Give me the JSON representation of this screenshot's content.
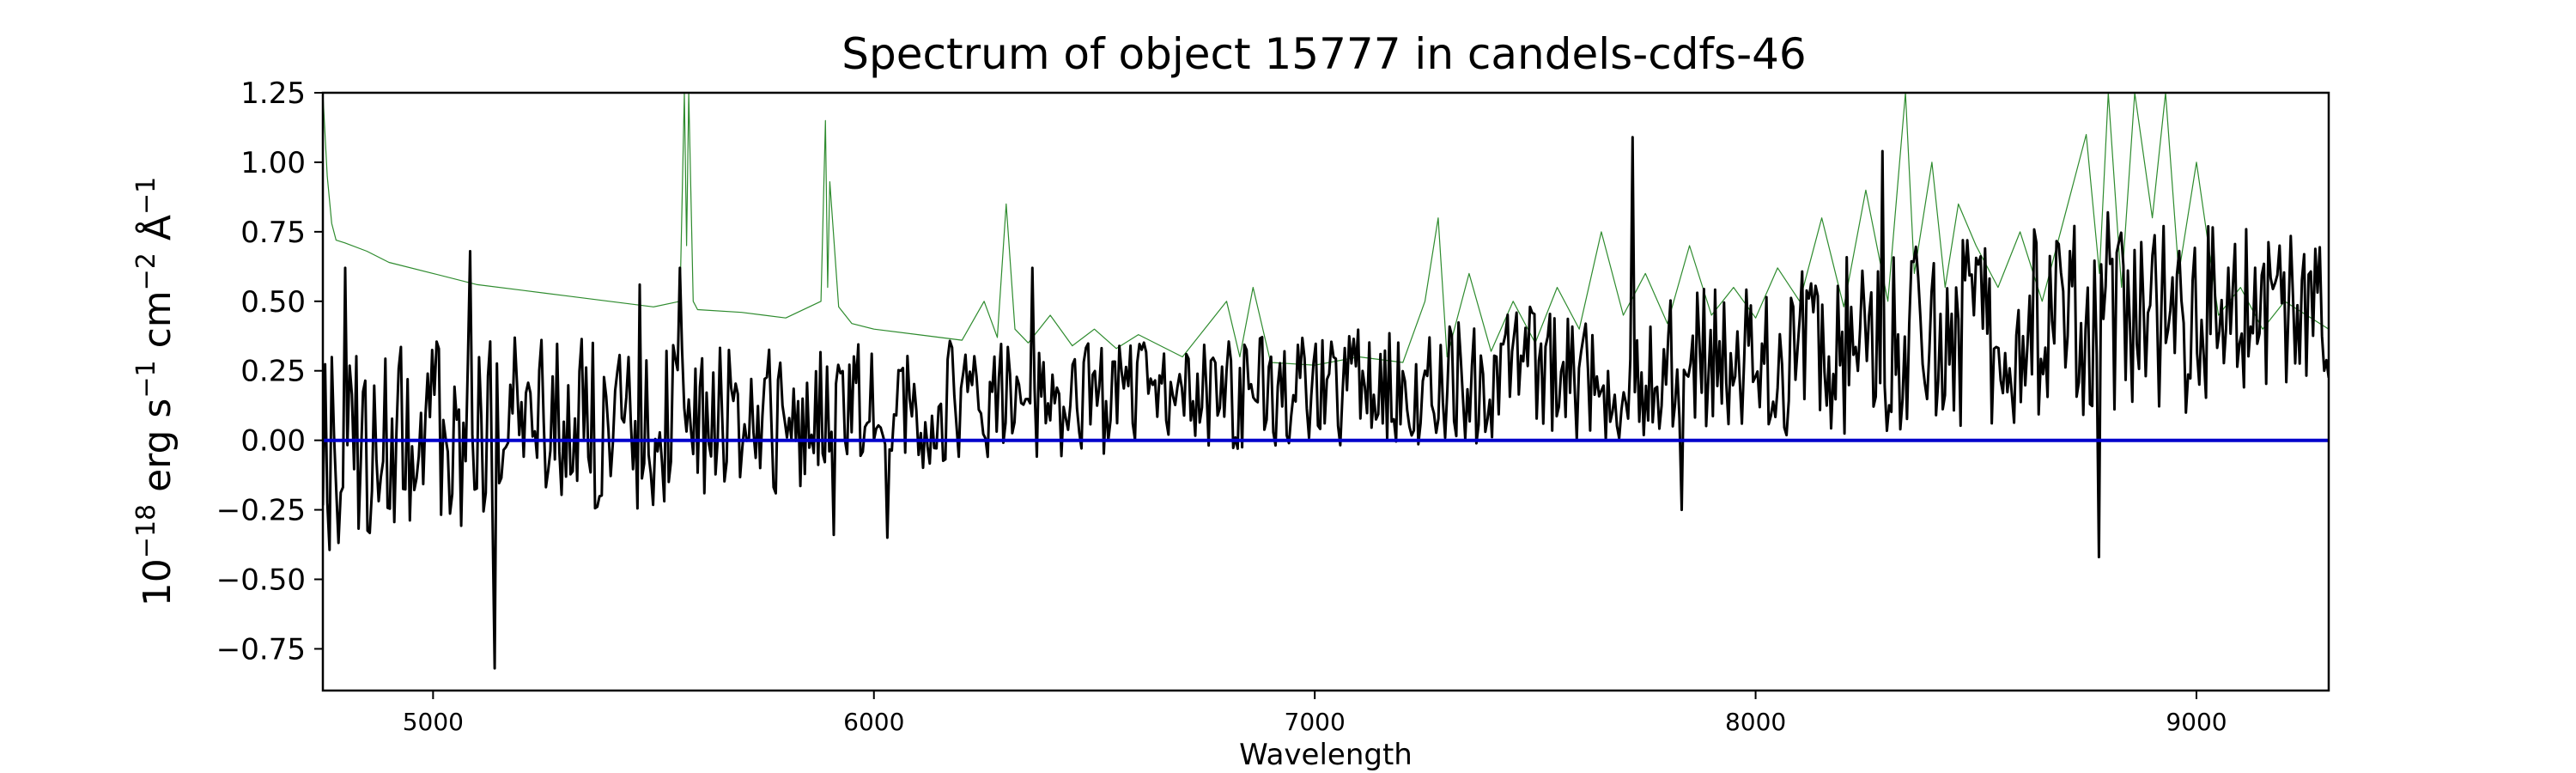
{
  "chart_data": {
    "type": "line",
    "title": "Spectrum of object 15777 in candels-cdfs-46",
    "xlabel": "Wavelength",
    "ylabel_base": "10",
    "ylabel_exp": "−18",
    "ylabel_unit1": " erg s",
    "ylabel_exp1": "−1",
    "ylabel_unit2": " cm",
    "ylabel_exp2": "−2",
    "ylabel_unit3": " Å",
    "ylabel_exp3": "−1",
    "xlim": [
      4750,
      9300
    ],
    "ylim": [
      -0.9,
      1.25
    ],
    "grid": false,
    "x_ticks": [
      5000,
      6000,
      7000,
      8000,
      9000
    ],
    "x_tick_labels": [
      "5000",
      "6000",
      "7000",
      "8000",
      "9000"
    ],
    "y_ticks": [
      1.25,
      1.0,
      0.75,
      0.5,
      0.25,
      0.0,
      -0.25,
      -0.5,
      -0.75
    ],
    "y_tick_labels": [
      "1.25",
      "1.00",
      "0.75",
      "0.50",
      "0.25",
      "0.00",
      "−0.25",
      "−0.50",
      "−0.75"
    ],
    "series": [
      {
        "color": "#2e8b2e",
        "line_width": 1.2,
        "x": [
          4750,
          4760,
          4770,
          4780,
          4800,
          4850,
          4900,
          5000,
          5100,
          5200,
          5300,
          5400,
          5500,
          5560,
          5570,
          5575,
          5580,
          5590,
          5600,
          5700,
          5800,
          5880,
          5890,
          5895,
          5900,
          5920,
          5950,
          6000,
          6100,
          6200,
          6250,
          6280,
          6300,
          6320,
          6350,
          6400,
          6450,
          6500,
          6550,
          6600,
          6700,
          6800,
          6830,
          6860,
          6900,
          7000,
          7100,
          7200,
          7250,
          7280,
          7300,
          7350,
          7400,
          7450,
          7500,
          7550,
          7600,
          7650,
          7700,
          7750,
          7800,
          7850,
          7900,
          7950,
          8000,
          8050,
          8100,
          8150,
          8200,
          8250,
          8300,
          8340,
          8360,
          8400,
          8430,
          8460,
          8500,
          8550,
          8600,
          8650,
          8700,
          8750,
          8780,
          8800,
          8830,
          8860,
          8900,
          8930,
          8960,
          9000,
          9050,
          9100,
          9150,
          9200,
          9250,
          9300
        ],
        "y": [
          1.25,
          0.95,
          0.78,
          0.72,
          0.71,
          0.68,
          0.64,
          0.6,
          0.56,
          0.54,
          0.52,
          0.5,
          0.48,
          0.5,
          1.25,
          0.7,
          1.25,
          0.5,
          0.47,
          0.46,
          0.44,
          0.5,
          1.15,
          0.55,
          0.93,
          0.48,
          0.42,
          0.4,
          0.38,
          0.36,
          0.5,
          0.37,
          0.85,
          0.4,
          0.35,
          0.45,
          0.34,
          0.4,
          0.33,
          0.38,
          0.3,
          0.5,
          0.3,
          0.55,
          0.28,
          0.27,
          0.3,
          0.28,
          0.5,
          0.8,
          0.3,
          0.6,
          0.32,
          0.5,
          0.35,
          0.55,
          0.4,
          0.75,
          0.45,
          0.6,
          0.42,
          0.7,
          0.45,
          0.55,
          0.44,
          0.62,
          0.5,
          0.8,
          0.48,
          0.9,
          0.5,
          1.25,
          0.6,
          1.0,
          0.55,
          0.85,
          0.7,
          0.55,
          0.75,
          0.5,
          0.8,
          1.1,
          0.6,
          1.25,
          0.55,
          1.25,
          0.8,
          1.25,
          0.6,
          1.0,
          0.45,
          0.55,
          0.4,
          0.5,
          0.45,
          0.4
        ]
      },
      {
        "color": "#000000",
        "line_width": 3,
        "x_start": 4750,
        "x_end": 9300,
        "sample_count": 900,
        "envelope_x": [
          4750,
          5000,
          5500,
          6000,
          6500,
          7000,
          7500,
          8000,
          8500,
          9000,
          9300
        ],
        "envelope_mean": [
          -0.05,
          0.02,
          0.05,
          0.12,
          0.15,
          0.18,
          0.24,
          0.3,
          0.4,
          0.45,
          0.45
        ],
        "envelope_amp": [
          0.35,
          0.35,
          0.32,
          0.25,
          0.2,
          0.2,
          0.25,
          0.3,
          0.35,
          0.35,
          0.3
        ],
        "seed": 15777,
        "features": [
          {
            "x": 4800,
            "y": 0.62
          },
          {
            "x": 5085,
            "y": 0.68
          },
          {
            "x": 5140,
            "y": -0.82
          },
          {
            "x": 5470,
            "y": 0.56
          },
          {
            "x": 5560,
            "y": 0.62
          },
          {
            "x": 5910,
            "y": -0.34
          },
          {
            "x": 6030,
            "y": -0.35
          },
          {
            "x": 6360,
            "y": 0.62
          },
          {
            "x": 7720,
            "y": 1.09
          },
          {
            "x": 7830,
            "y": -0.25
          },
          {
            "x": 8290,
            "y": 1.04
          },
          {
            "x": 8780,
            "y": -0.42
          },
          {
            "x": 8800,
            "y": 0.82
          }
        ]
      },
      {
        "color": "#0000cc",
        "line_width": 4,
        "x": [
          4750,
          9300
        ],
        "y": [
          0.0,
          0.0
        ]
      }
    ]
  }
}
